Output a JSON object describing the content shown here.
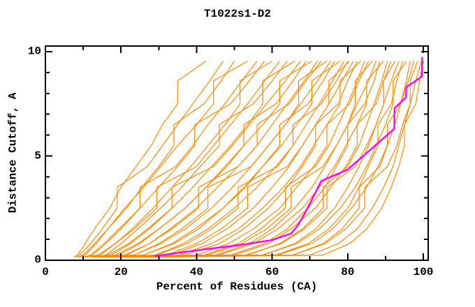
{
  "window": {
    "title": "T1022s1-D2"
  },
  "chart_data": {
    "type": "line",
    "title": "T1022s1-D2",
    "xlabel": "Percent of Residues (CA)",
    "ylabel": "Distance Cutoff, A",
    "xlim": [
      0,
      101.5
    ],
    "ylim": [
      0,
      10.3
    ],
    "grid": false,
    "legend": "none",
    "x_major_ticks": [
      0,
      20,
      40,
      60,
      80,
      100
    ],
    "x_minor_ticks": [
      10,
      30,
      50,
      70,
      90
    ],
    "y_major_ticks": [
      0,
      5,
      10
    ],
    "y_minor_ticks": [
      1,
      2,
      3,
      4,
      6,
      7,
      8,
      9
    ],
    "x_tick_labels": [
      "0",
      "20",
      "40",
      "60",
      "80",
      "100"
    ],
    "y_tick_labels": [
      "0",
      "5",
      "10"
    ],
    "colors": {
      "model_lines": "#ff8800",
      "highlight_line": "#ff00ff",
      "frame": "#000000",
      "text": "#000000",
      "background": "#ffffff"
    },
    "highlight_series": {
      "name": "highlighted model (magenta)",
      "color": "#ff00ff",
      "points": [
        [
          29,
          0.2
        ],
        [
          41,
          0.5
        ],
        [
          51,
          0.72
        ],
        [
          60,
          0.97
        ],
        [
          65,
          1.28
        ],
        [
          66.5,
          1.6
        ],
        [
          68.5,
          2.2
        ],
        [
          70.5,
          2.9
        ],
        [
          73,
          3.8
        ],
        [
          80,
          4.35
        ],
        [
          86,
          5.3
        ],
        [
          92.3,
          6.3
        ],
        [
          92.4,
          7.3
        ],
        [
          95.4,
          7.8
        ],
        [
          95.5,
          8.3
        ],
        [
          99.6,
          8.8
        ],
        [
          99.7,
          9.75
        ]
      ]
    },
    "model_series_y_levels": [
      0.15,
      0.25,
      0.8,
      1.5,
      2.5,
      3.5,
      4.5,
      5.5,
      6.5,
      7.5,
      8.6,
      9.55
    ],
    "model_series": [
      {
        "x": [
          7.5,
          8.5,
          10.5,
          13,
          17,
          20,
          24,
          28,
          31,
          35,
          35,
          42.5
        ]
      },
      {
        "x": [
          8,
          9,
          12,
          15,
          19,
          19,
          27,
          31,
          35,
          39,
          43.5,
          47
        ]
      },
      {
        "x": [
          9,
          10.5,
          13.5,
          16.5,
          21.5,
          25.5,
          30,
          34,
          34,
          42,
          46.5,
          50
        ]
      },
      {
        "x": [
          8.5,
          10,
          13,
          16.5,
          21,
          26,
          30.5,
          35,
          40,
          44.5,
          44.5,
          53.5
        ]
      },
      {
        "x": [
          10,
          12,
          15.5,
          19.5,
          25,
          25,
          34.5,
          39,
          43,
          47.5,
          52,
          56
        ]
      },
      {
        "x": [
          11,
          12.5,
          16,
          20,
          25,
          30,
          35,
          39.5,
          39.5,
          49,
          54,
          58
        ]
      },
      {
        "x": [
          12,
          14.5,
          18.5,
          23,
          28.5,
          33.5,
          38.5,
          43,
          47.5,
          51.5,
          51.5,
          60
        ]
      },
      {
        "x": [
          10.5,
          14,
          18.5,
          23.5,
          29.5,
          29.5,
          40,
          44.5,
          49,
          53.5,
          58,
          62
        ]
      },
      {
        "x": [
          13,
          16,
          20,
          24.5,
          30.5,
          36,
          41,
          46,
          46,
          55,
          60,
          64
        ]
      },
      {
        "x": [
          12.5,
          16.5,
          22,
          27,
          33.5,
          39,
          44,
          49,
          53.5,
          57.5,
          57.5,
          66
        ]
      },
      {
        "x": [
          14,
          17.5,
          22.5,
          27.5,
          33.5,
          33.5,
          44.5,
          49.5,
          54,
          58.5,
          63.5,
          67.5
        ]
      },
      {
        "x": [
          13.5,
          18.5,
          24.5,
          30,
          37,
          42.5,
          47.5,
          52.5,
          52.5,
          61,
          65.5,
          69
        ]
      },
      {
        "x": [
          15,
          19.5,
          25,
          30,
          37,
          42.5,
          48,
          52.5,
          57.5,
          62,
          62,
          70.5
        ]
      },
      {
        "x": [
          14.5,
          21,
          27.5,
          33.5,
          40.5,
          40.5,
          51,
          56,
          60,
          64,
          68.5,
          72
        ]
      },
      {
        "x": [
          16,
          21.5,
          27.5,
          33,
          40,
          45.5,
          51,
          56,
          56,
          64.5,
          69,
          73
        ]
      },
      {
        "x": [
          15.5,
          23.5,
          30.5,
          37,
          44,
          49.5,
          54.5,
          59,
          63.5,
          67,
          67,
          74.5
        ]
      },
      {
        "x": [
          17,
          23.5,
          30,
          36,
          43,
          43,
          54.5,
          59,
          63.5,
          67.5,
          72,
          75.5
        ]
      },
      {
        "x": [
          16.5,
          26,
          34,
          40.5,
          47,
          53,
          57.5,
          62,
          62,
          69.5,
          73.5,
          76.5
        ]
      },
      {
        "x": [
          18,
          26,
          33.5,
          39.5,
          47,
          52.5,
          57.5,
          62.5,
          66.5,
          70.5,
          70.5,
          78
        ]
      },
      {
        "x": [
          17.5,
          29.5,
          37.5,
          44,
          51,
          51,
          61.5,
          65.5,
          69,
          72.5,
          76,
          79
        ]
      },
      {
        "x": [
          19,
          29,
          36.5,
          43,
          50,
          56,
          61,
          65.5,
          65.5,
          73,
          77,
          80
        ]
      },
      {
        "x": [
          18.5,
          33,
          41.5,
          48,
          55,
          60,
          64.5,
          68,
          71.5,
          75,
          75,
          80.5
        ]
      },
      {
        "x": [
          20,
          32,
          40,
          46.5,
          53.5,
          53.5,
          64,
          68,
          71.5,
          75,
          78.5,
          81.5
        ]
      },
      {
        "x": [
          19.5,
          37,
          46,
          52.5,
          59,
          64,
          68,
          71.5,
          71.5,
          77.5,
          80,
          82.5
        ]
      },
      {
        "x": [
          21,
          35.5,
          44,
          51,
          57.5,
          63,
          67.5,
          71,
          74.5,
          78,
          78,
          83.5
        ]
      },
      {
        "x": [
          20.5,
          42,
          51,
          57,
          63.5,
          63.5,
          71.5,
          75,
          77.5,
          80,
          82.5,
          84.5
        ]
      },
      {
        "x": [
          22,
          40,
          48.5,
          55,
          62,
          66.5,
          71,
          74.5,
          74.5,
          80.5,
          83,
          85.5
        ]
      },
      {
        "x": [
          21.5,
          45,
          54,
          60,
          66,
          70.5,
          74,
          77,
          80,
          82,
          82,
          86.5
        ]
      },
      {
        "x": [
          23,
          43,
          52,
          58.5,
          65,
          65,
          73.5,
          77,
          80,
          82.5,
          85.5,
          87.5
        ]
      },
      {
        "x": [
          22.5,
          49,
          58,
          64,
          69.5,
          74,
          77,
          80,
          80,
          84.5,
          87,
          88.5
        ]
      },
      {
        "x": [
          24,
          46,
          55,
          61.5,
          68,
          72.5,
          76.5,
          79.5,
          82.5,
          85,
          85,
          89.5
        ]
      },
      {
        "x": [
          23.5,
          53.5,
          62,
          68,
          73.5,
          73.5,
          80,
          83,
          85,
          87,
          89,
          90.5
        ]
      },
      {
        "x": [
          25,
          50,
          59,
          65,
          71.5,
          75.5,
          79.5,
          82.5,
          82.5,
          87.5,
          89.5,
          91.5
        ]
      },
      {
        "x": [
          24.5,
          57.5,
          66,
          71.5,
          76.5,
          80,
          83,
          85.5,
          87.5,
          89.5,
          89.5,
          92.5
        ]
      },
      {
        "x": [
          26,
          53,
          62.5,
          68.5,
          74.5,
          74.5,
          82,
          85,
          87.5,
          89.5,
          91.5,
          93.5
        ]
      },
      {
        "x": [
          25.5,
          61,
          69.5,
          75,
          80,
          83,
          85.5,
          88,
          88,
          91.5,
          93,
          94.5
        ]
      },
      {
        "x": [
          27,
          57.5,
          66.5,
          72.5,
          78,
          82,
          85,
          87.5,
          90,
          92,
          92,
          95.5
        ]
      },
      {
        "x": [
          26.5,
          65.5,
          73.5,
          78.5,
          83,
          83,
          88.5,
          90.5,
          92.5,
          94,
          95.5,
          96.5
        ]
      },
      {
        "x": [
          28,
          61.5,
          70.5,
          76,
          81,
          85,
          88,
          90.5,
          90.5,
          94,
          96,
          97.5
        ]
      },
      {
        "x": [
          27.5,
          70,
          77.5,
          82.5,
          86.5,
          89.5,
          92,
          93.5,
          95,
          96.5,
          96.5,
          98.5
        ]
      },
      {
        "x": [
          29,
          65.5,
          74,
          79.5,
          84.5,
          84.5,
          90.5,
          93,
          94.5,
          96.5,
          98,
          99.5
        ]
      },
      {
        "x": [
          30,
          73.5,
          80.5,
          85,
          89,
          91.5,
          93.5,
          95,
          95,
          98,
          99,
          100
        ]
      }
    ]
  }
}
